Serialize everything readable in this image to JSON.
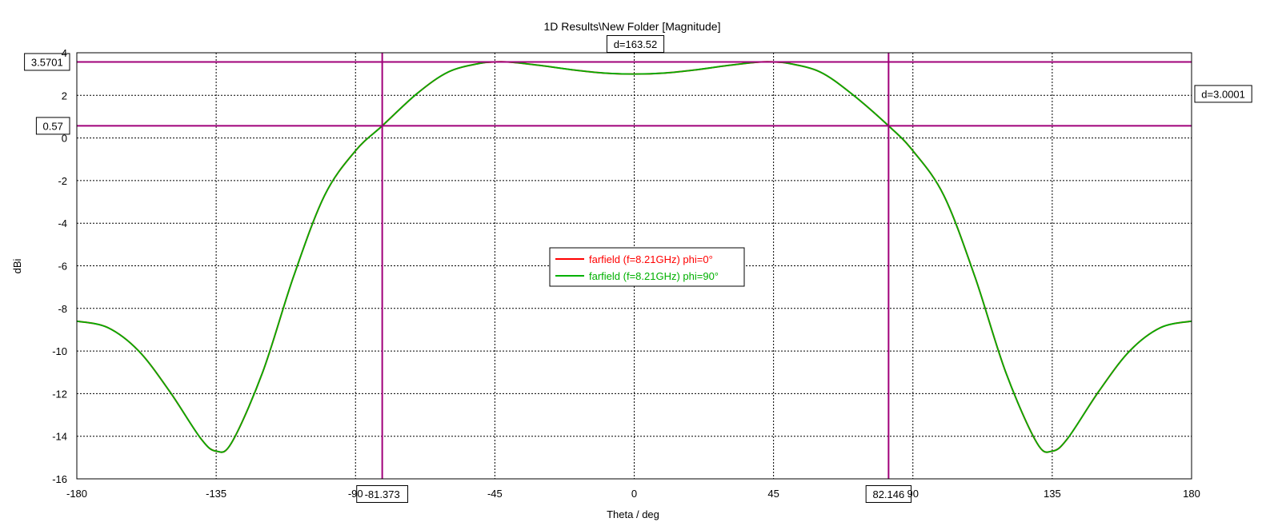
{
  "chart_data": {
    "type": "line",
    "title": "1D Results\\New Folder [Magnitude]",
    "xlabel": "Theta / deg",
    "ylabel": "dBi",
    "xlim": [
      -180,
      180
    ],
    "ylim": [
      -16,
      4
    ],
    "x_ticks": [
      -180,
      -135,
      -90,
      -45,
      0,
      45,
      90,
      135,
      180
    ],
    "x_tick_labels": [
      "-180",
      "-135",
      "-90",
      "-45",
      "0",
      "45",
      "90",
      "135",
      "180"
    ],
    "y_ticks": [
      -16,
      -14,
      -12,
      -10,
      -8,
      -6,
      -4,
      -2,
      0,
      2,
      4
    ],
    "y_tick_labels": [
      "-16",
      "-14",
      "-12",
      "-10",
      "-8",
      "-6",
      "-4",
      "-2",
      "0",
      "2",
      "4"
    ],
    "grid": true,
    "legend_position": "center",
    "x": [
      -180,
      -170,
      -160,
      -150,
      -140,
      -135,
      -130,
      -120,
      -110,
      -100,
      -90,
      -81.373,
      -70,
      -60,
      -50,
      -45,
      -40,
      -30,
      -20,
      -10,
      0,
      10,
      20,
      30,
      40,
      45,
      50,
      60,
      70,
      82.146,
      90,
      100,
      110,
      120,
      130,
      135,
      140,
      150,
      160,
      170,
      180
    ],
    "series": [
      {
        "name": "farfield (f=8.21GHz) phi=0°",
        "color": "#ff0000",
        "values": [
          -8.6,
          -8.9,
          -10.0,
          -11.9,
          -14.1,
          -14.7,
          -14.3,
          -11.0,
          -6.5,
          -2.7,
          -0.6,
          0.57,
          2.1,
          3.1,
          3.5,
          3.57,
          3.56,
          3.4,
          3.2,
          3.05,
          3.0,
          3.05,
          3.2,
          3.4,
          3.56,
          3.57,
          3.5,
          3.1,
          2.1,
          0.57,
          -0.6,
          -2.7,
          -6.5,
          -11.0,
          -14.3,
          -14.7,
          -14.1,
          -11.9,
          -10.0,
          -8.9,
          -8.6
        ]
      },
      {
        "name": "farfield (f=8.21GHz) phi=90°",
        "color": "#00b000",
        "values": [
          -8.6,
          -8.9,
          -10.0,
          -11.9,
          -14.1,
          -14.7,
          -14.3,
          -11.0,
          -6.5,
          -2.7,
          -0.6,
          0.57,
          2.1,
          3.1,
          3.5,
          3.57,
          3.56,
          3.4,
          3.2,
          3.05,
          3.0,
          3.05,
          3.2,
          3.4,
          3.56,
          3.57,
          3.5,
          3.1,
          2.1,
          0.57,
          -0.6,
          -2.7,
          -6.5,
          -11.0,
          -14.3,
          -14.7,
          -14.1,
          -11.9,
          -10.0,
          -8.9,
          -8.6
        ]
      }
    ],
    "markers": {
      "color": "#a0007a",
      "horizontal": [
        {
          "value": 3.5701,
          "label": "3.5701"
        },
        {
          "value": 0.57,
          "label": "0.57"
        }
      ],
      "vertical": [
        {
          "value": -81.373,
          "label": "-81.373"
        },
        {
          "value": 82.146,
          "label": "82.146"
        }
      ],
      "delta_x_label": "d=163.52",
      "delta_y_label": "d=3.0001"
    }
  }
}
